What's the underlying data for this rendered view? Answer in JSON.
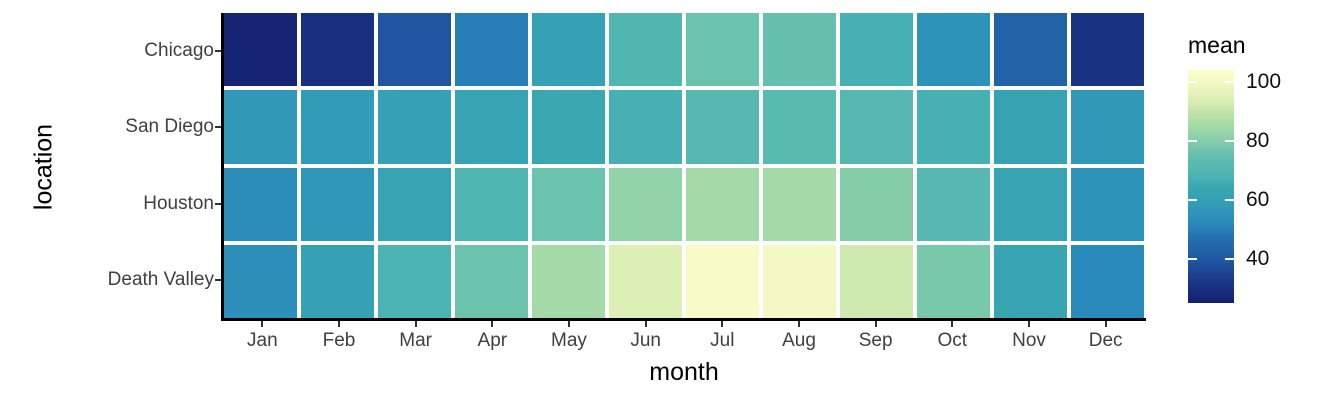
{
  "figure": {
    "background": "#ffffff",
    "axis_line_color": "#000000",
    "tick_mark_color": "#333333",
    "tick_label_color": "#404040",
    "cell_gap_color": "#ffffff"
  },
  "chart_data": {
    "type": "heatmap",
    "title": "",
    "xlabel": "month",
    "ylabel": "location",
    "grid": "off",
    "legend_position": "right",
    "x_categories": [
      "Jan",
      "Feb",
      "Mar",
      "Apr",
      "May",
      "Jun",
      "Jul",
      "Aug",
      "Sep",
      "Oct",
      "Nov",
      "Dec"
    ],
    "y_categories": [
      "Chicago",
      "San Diego",
      "Houston",
      "Death Valley"
    ],
    "series": [
      {
        "name": "Chicago",
        "values": [
          27,
          30,
          39,
          50,
          60,
          70,
          76,
          75,
          67,
          55,
          43,
          31
        ]
      },
      {
        "name": "San Diego",
        "values": [
          57,
          58,
          60,
          62,
          64,
          67,
          71,
          72,
          71,
          67,
          61,
          57
        ]
      },
      {
        "name": "Houston",
        "values": [
          53,
          56,
          62,
          69,
          76,
          82,
          85,
          85,
          80,
          71,
          62,
          55
        ]
      },
      {
        "name": "Death Valley",
        "values": [
          54,
          60,
          68,
          76,
          85,
          94,
          102,
          100,
          92,
          78,
          63,
          52
        ]
      }
    ],
    "colorbar": {
      "title": "mean",
      "tick_labels": [
        100,
        80,
        60,
        40
      ],
      "domain_min": 25,
      "domain_max": 104,
      "colormap_stops": [
        {
          "value": 25,
          "color": "#121f6b"
        },
        {
          "value": 28.5,
          "color": "#172a7a"
        },
        {
          "value": 33.7,
          "color": "#1d3d8c"
        },
        {
          "value": 40,
          "color": "#2059a2"
        },
        {
          "value": 47.4,
          "color": "#2472b1"
        },
        {
          "value": 52.5,
          "color": "#2b8cbc"
        },
        {
          "value": 60,
          "color": "#35a1b4"
        },
        {
          "value": 64.4,
          "color": "#3aa8b1"
        },
        {
          "value": 68,
          "color": "#4bb3b2"
        },
        {
          "value": 74.7,
          "color": "#63bfae"
        },
        {
          "value": 80,
          "color": "#85cda9"
        },
        {
          "value": 88.4,
          "color": "#b8e2a8"
        },
        {
          "value": 95,
          "color": "#e2f1b6"
        },
        {
          "value": 100,
          "color": "#f3f9c4"
        },
        {
          "value": 104,
          "color": "#fdfdcc"
        }
      ]
    }
  }
}
